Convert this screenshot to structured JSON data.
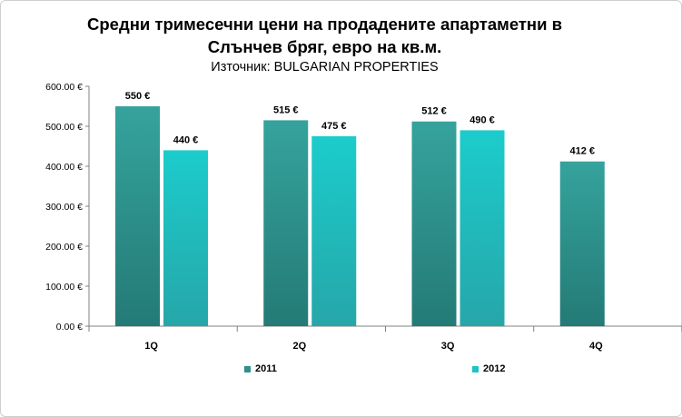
{
  "chart_data": {
    "type": "bar",
    "title_line1": "Средни тримесечни цени на продадените апартаметни в",
    "title_line2": "Слънчев бряг, евро на кв.м.",
    "subtitle": "Източник: BULGARIAN PROPERTIES",
    "categories": [
      "1Q",
      "2Q",
      "3Q",
      "4Q"
    ],
    "series": [
      {
        "name": "2011",
        "values": [
          550,
          515,
          512,
          412
        ],
        "labels": [
          "550 €",
          "515 €",
          "512 €",
          "412 €"
        ],
        "color": "#2f8f8a"
      },
      {
        "name": "2012",
        "values": [
          440,
          475,
          490,
          null
        ],
        "labels": [
          "440 €",
          "475 €",
          "490 €",
          ""
        ],
        "color": "#1cc4c4"
      }
    ],
    "ylim": [
      0,
      600
    ],
    "yticks": [
      "0.00 €",
      "100.00 €",
      "200.00 €",
      "300.00 €",
      "400.00 €",
      "500.00 €",
      "600.00 €"
    ],
    "ytick_values": [
      0,
      100,
      200,
      300,
      400,
      500,
      600
    ],
    "legend_position": "bottom",
    "grid": false
  }
}
